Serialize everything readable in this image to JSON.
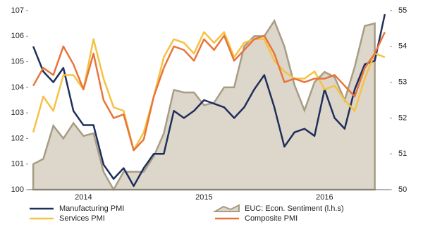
{
  "chart_data": {
    "type": "line",
    "categories": [
      null,
      null,
      null,
      null,
      null,
      "2014",
      null,
      null,
      null,
      null,
      null,
      null,
      null,
      null,
      null,
      null,
      null,
      "2015",
      null,
      null,
      null,
      null,
      null,
      null,
      null,
      null,
      null,
      null,
      null,
      "2016",
      null,
      null,
      null,
      null,
      null,
      null
    ],
    "ylim": [
      100,
      107
    ],
    "yticks": [
      100,
      101,
      102,
      103,
      104,
      105,
      106,
      107
    ],
    "y2lim": [
      50,
      55
    ],
    "y2ticks": [
      50,
      51,
      52,
      53,
      54,
      55
    ],
    "series": [
      {
        "name": "Manufacturing PMI",
        "color": "#1f2f5c",
        "axis": "y2",
        "values": [
          54.0,
          53.3,
          53.0,
          53.4,
          52.2,
          51.8,
          51.8,
          50.7,
          50.3,
          50.6,
          50.1,
          50.6,
          51.0,
          51.0,
          52.2,
          52.0,
          52.2,
          52.5,
          52.4,
          52.3,
          52.0,
          52.3,
          52.8,
          53.2,
          52.3,
          51.2,
          51.6,
          51.7,
          51.5,
          52.8,
          52.0,
          51.7,
          52.8,
          53.5,
          53.6,
          54.9
        ]
      },
      {
        "name": "EUC: Econ. Sentiment (l.h.s)",
        "color": "#a79d85",
        "fill": "#ddd6cb",
        "axis": "y",
        "type": "area",
        "values": [
          101.0,
          101.2,
          102.5,
          102.0,
          102.6,
          102.1,
          102.2,
          100.7,
          100.0,
          100.7,
          100.7,
          100.7,
          101.3,
          102.2,
          103.9,
          103.8,
          103.8,
          103.3,
          103.4,
          104.0,
          104.0,
          105.6,
          106.0,
          106.0,
          106.6,
          105.6,
          104.1,
          103.1,
          104.2,
          104.6,
          104.4,
          103.5,
          104.8,
          106.4,
          106.5,
          null
        ]
      },
      {
        "name": "Services PMI",
        "color": "#f5c242",
        "axis": "y2",
        "values": [
          51.6,
          52.6,
          52.2,
          53.2,
          53.2,
          52.8,
          54.2,
          53.1,
          52.3,
          52.2,
          51.1,
          51.6,
          52.6,
          53.7,
          54.2,
          54.1,
          53.8,
          54.4,
          54.1,
          54.4,
          53.7,
          54.1,
          54.2,
          54.2,
          53.6,
          53.3,
          53.1,
          53.1,
          53.3,
          52.8,
          52.9,
          52.5,
          52.2,
          53.1,
          53.8,
          53.7
        ]
      },
      {
        "name": "Composite PMI",
        "color": "#e8743b",
        "axis": "y2",
        "values": [
          52.9,
          53.4,
          53.2,
          54.0,
          53.5,
          52.8,
          53.8,
          52.5,
          52.0,
          52.1,
          51.1,
          51.4,
          52.6,
          53.4,
          54.0,
          53.9,
          53.6,
          54.2,
          53.9,
          54.3,
          53.6,
          53.9,
          54.2,
          54.3,
          53.8,
          53.0,
          53.1,
          53.0,
          53.1,
          53.1,
          53.2,
          52.9,
          52.6,
          53.4,
          53.8,
          54.4
        ]
      }
    ]
  }
}
